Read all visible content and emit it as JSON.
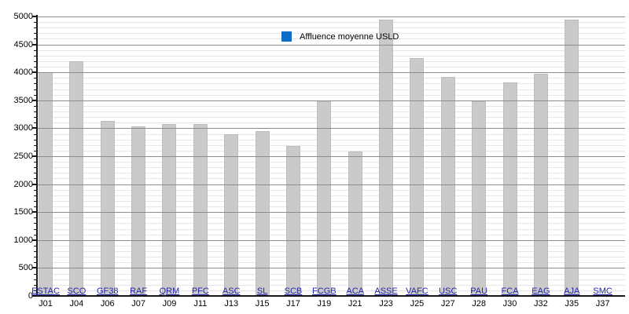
{
  "chart_data": {
    "type": "bar",
    "title": "",
    "legend": [
      "Affluence moyenne USLD"
    ],
    "legend_position": "top-center",
    "xlabel": "",
    "ylabel": "",
    "ylim": [
      0,
      5000
    ],
    "y_major_step": 500,
    "y_minor_step": 100,
    "grid": "horizontal: minor lines every 100 behind bars, major lines every 500 drawn over bars",
    "categories": [
      "ESTAC",
      "SCO",
      "GF38",
      "RAF",
      "QRM",
      "PFC",
      "ASC",
      "SL",
      "SCB",
      "FCGB",
      "ACA",
      "ASSE",
      "VAFC",
      "USC",
      "PAU",
      "FCA",
      "EAG",
      "AJA",
      "SMC"
    ],
    "matchday_labels": [
      "J01",
      "J04",
      "J06",
      "J07",
      "J09",
      "J11",
      "J13",
      "J15",
      "J17",
      "J19",
      "J21",
      "J23",
      "J25",
      "J27",
      "J28",
      "J30",
      "J32",
      "J35",
      "J37"
    ],
    "series": [
      {
        "name": "Affluence moyenne USLD",
        "values": [
          4000,
          4200,
          3130,
          3040,
          3070,
          3070,
          2900,
          2950,
          2680,
          3490,
          2590,
          4950,
          4250,
          3920,
          3490,
          3820,
          3980,
          4940,
          0
        ]
      }
    ],
    "y_tick_labels": [
      "0",
      "500",
      "1000",
      "1500",
      "2000",
      "2500",
      "3000",
      "3500",
      "4000",
      "4500",
      "5000"
    ],
    "colors": {
      "bar_fill": "#cacaca",
      "bar_border": "#bdbdbd",
      "legend_swatch": "#0c6cc8",
      "club_link": "#2323a8",
      "axis": "#1a1a1a",
      "grid_major": "#8d8d8d",
      "grid_minor": "#e6e6e6",
      "text": "#000000"
    }
  }
}
